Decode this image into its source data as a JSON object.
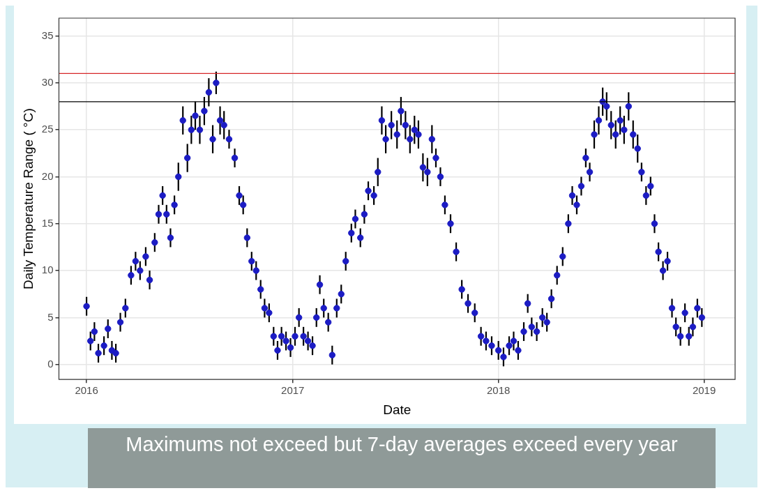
{
  "chart_data": {
    "type": "scatter",
    "xlabel": "Date",
    "ylabel": "Daily Temperature Range ( °C)",
    "annotations": [
      "Maximums not exceed but 7-day averages exceed every year"
    ],
    "xlim": [
      "2015-11-13",
      "2019-02-25"
    ],
    "xticks": [
      "2016",
      "2017",
      "2018",
      "2019"
    ],
    "ylim": [
      -1.6,
      36.9
    ],
    "yticks": [
      0,
      5,
      10,
      15,
      20,
      25,
      30,
      35
    ],
    "grid": true,
    "legend": false,
    "marker": "circle",
    "ref_lines": [
      {
        "axis": "y",
        "value": 31,
        "color": "#d62728"
      },
      {
        "axis": "y",
        "value": 28,
        "color": "#000000"
      }
    ],
    "series": [
      {
        "color": "#1c1cc4",
        "x": [
          "2016-01-01",
          "2016-01-08",
          "2016-01-15",
          "2016-01-22",
          "2016-02-01",
          "2016-02-08",
          "2016-02-15",
          "2016-02-22",
          "2016-03-01",
          "2016-03-10",
          "2016-03-20",
          "2016-03-28",
          "2016-04-05",
          "2016-04-15",
          "2016-04-22",
          "2016-05-01",
          "2016-05-08",
          "2016-05-15",
          "2016-05-22",
          "2016-05-29",
          "2016-06-05",
          "2016-06-12",
          "2016-06-20",
          "2016-06-28",
          "2016-07-05",
          "2016-07-12",
          "2016-07-20",
          "2016-07-28",
          "2016-08-05",
          "2016-08-12",
          "2016-08-18",
          "2016-08-25",
          "2016-09-01",
          "2016-09-10",
          "2016-09-20",
          "2016-09-28",
          "2016-10-05",
          "2016-10-12",
          "2016-10-20",
          "2016-10-28",
          "2016-11-05",
          "2016-11-12",
          "2016-11-20",
          "2016-11-28",
          "2016-12-05",
          "2016-12-12",
          "2016-12-20",
          "2016-12-28",
          "2017-01-05",
          "2017-01-12",
          "2017-01-20",
          "2017-01-28",
          "2017-02-05",
          "2017-02-12",
          "2017-02-18",
          "2017-02-25",
          "2017-03-05",
          "2017-03-12",
          "2017-03-20",
          "2017-03-28",
          "2017-04-05",
          "2017-04-15",
          "2017-04-22",
          "2017-05-01",
          "2017-05-08",
          "2017-05-15",
          "2017-05-25",
          "2017-06-01",
          "2017-06-08",
          "2017-06-15",
          "2017-06-25",
          "2017-07-05",
          "2017-07-12",
          "2017-07-20",
          "2017-07-28",
          "2017-08-05",
          "2017-08-12",
          "2017-08-20",
          "2017-08-28",
          "2017-09-05",
          "2017-09-12",
          "2017-09-20",
          "2017-09-28",
          "2017-10-08",
          "2017-10-18",
          "2017-10-28",
          "2017-11-08",
          "2017-11-20",
          "2017-12-01",
          "2017-12-10",
          "2017-12-20",
          "2018-01-01",
          "2018-01-10",
          "2018-01-20",
          "2018-01-28",
          "2018-02-05",
          "2018-02-15",
          "2018-02-22",
          "2018-03-01",
          "2018-03-10",
          "2018-03-20",
          "2018-03-28",
          "2018-04-05",
          "2018-04-15",
          "2018-04-25",
          "2018-05-05",
          "2018-05-12",
          "2018-05-20",
          "2018-05-28",
          "2018-06-05",
          "2018-06-12",
          "2018-06-20",
          "2018-06-28",
          "2018-07-05",
          "2018-07-12",
          "2018-07-20",
          "2018-07-28",
          "2018-08-05",
          "2018-08-12",
          "2018-08-20",
          "2018-08-28",
          "2018-09-05",
          "2018-09-12",
          "2018-09-20",
          "2018-09-28",
          "2018-10-05",
          "2018-10-12",
          "2018-10-20",
          "2018-10-28",
          "2018-11-05",
          "2018-11-12",
          "2018-11-20",
          "2018-11-28",
          "2018-12-05",
          "2018-12-12",
          "2018-12-20",
          "2018-12-28"
        ],
        "values": [
          6.2,
          2.5,
          3.5,
          1.2,
          2.0,
          3.8,
          1.5,
          1.2,
          4.5,
          6.0,
          9.5,
          11.0,
          10.0,
          11.5,
          9.0,
          13.0,
          16.0,
          18.0,
          16.0,
          13.5,
          17.0,
          20.0,
          26.0,
          22.0,
          25.0,
          26.5,
          25.0,
          27.0,
          29.0,
          24.0,
          30.0,
          26.0,
          25.5,
          24.0,
          22.0,
          18.0,
          17.0,
          13.5,
          11.0,
          10.0,
          8.0,
          6.0,
          5.5,
          3.0,
          1.5,
          3.0,
          2.5,
          1.8,
          3.0,
          5.0,
          3.0,
          2.5,
          2.0,
          5.0,
          8.5,
          6.0,
          4.5,
          1.0,
          6.0,
          7.5,
          11.0,
          14.0,
          15.5,
          13.5,
          16.0,
          18.5,
          18.0,
          20.5,
          26.0,
          24.0,
          25.5,
          24.5,
          27.0,
          25.5,
          24.0,
          25.0,
          24.5,
          21.0,
          20.5,
          24.0,
          22.0,
          20.0,
          17.0,
          15.0,
          12.0,
          8.0,
          6.5,
          5.5,
          3.0,
          2.5,
          2.0,
          1.5,
          0.8,
          2.0,
          2.5,
          1.5,
          3.5,
          6.5,
          4.0,
          3.5,
          5.0,
          4.5,
          7.0,
          9.5,
          11.5,
          15.0,
          18.0,
          17.0,
          19.0,
          22.0,
          20.5,
          24.5,
          26.0,
          28.0,
          27.5,
          25.5,
          24.5,
          26.0,
          25.0,
          27.5,
          24.5,
          23.0,
          20.5,
          18.0,
          19.0,
          15.0,
          12.0,
          10.0,
          11.0,
          6.0,
          4.0,
          3.0,
          5.5,
          3.0,
          4.0,
          6.0,
          5.0
        ],
        "errors": [
          1,
          1,
          1,
          1,
          1,
          1,
          1,
          1,
          1,
          1,
          1,
          1,
          1,
          1,
          1,
          1,
          1,
          1,
          1,
          1,
          1,
          1.5,
          1.5,
          1.5,
          1.5,
          1.5,
          1.5,
          1.5,
          1.5,
          1.5,
          1.2,
          1.5,
          1.5,
          1,
          1,
          1,
          1,
          1,
          1,
          1,
          1,
          1,
          1,
          1,
          1,
          1,
          1,
          1,
          1,
          1,
          1,
          1,
          1,
          1,
          1,
          1,
          1,
          1,
          1,
          1,
          1,
          1,
          1,
          1,
          1,
          1,
          1,
          1.5,
          1.5,
          1.5,
          1.5,
          1.5,
          1.5,
          1.5,
          1.5,
          1.5,
          1.5,
          1.5,
          1.5,
          1.5,
          1,
          1,
          1,
          1,
          1,
          1,
          1,
          1,
          1,
          1,
          1,
          1,
          1,
          1,
          1,
          1,
          1,
          1,
          1,
          1,
          1,
          1,
          1,
          1,
          1,
          1,
          1,
          1,
          1,
          1,
          1,
          1.5,
          1.5,
          1.5,
          1.5,
          1.5,
          1.5,
          1.5,
          1.5,
          1.5,
          1.5,
          1.5,
          1,
          1,
          1,
          1,
          1,
          1,
          1,
          1,
          1,
          1,
          1,
          1,
          1,
          1,
          1
        ]
      }
    ]
  }
}
